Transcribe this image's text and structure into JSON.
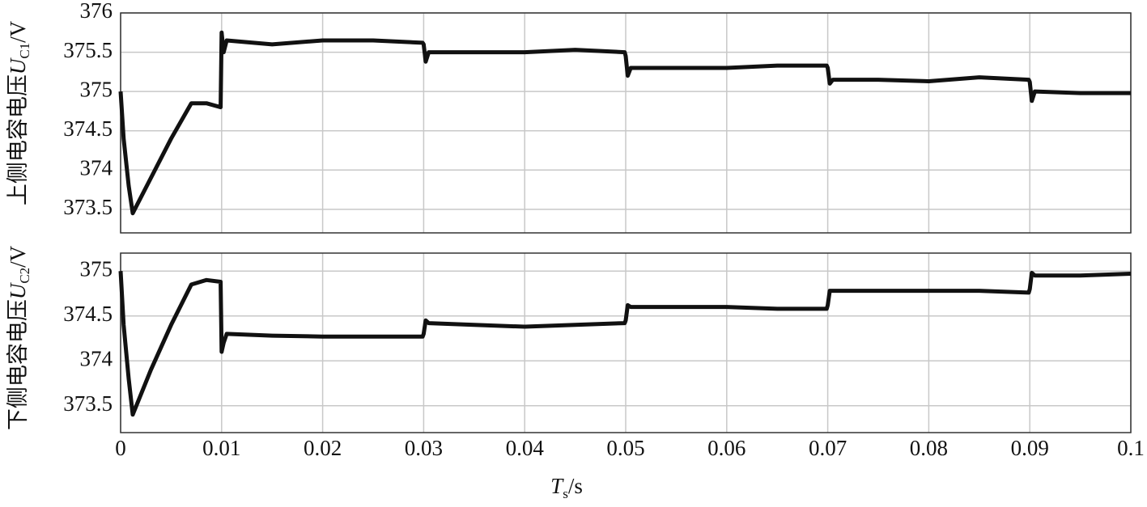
{
  "chart_data": [
    {
      "type": "line",
      "ylabel": [
        "上侧电容电压",
        "U",
        "C1",
        "/V"
      ],
      "xlim": [
        0,
        0.1
      ],
      "xticks": [
        0,
        0.01,
        0.02,
        0.03,
        0.04,
        0.05,
        0.06,
        0.07,
        0.08,
        0.09,
        0.1
      ],
      "show_xtick_labels": false,
      "ylim": [
        373.2,
        376
      ],
      "yticks": [
        373.5,
        374,
        374.5,
        375,
        375.5,
        376
      ],
      "grid": true,
      "x": [
        0,
        0.0003,
        0.0008,
        0.0012,
        0.003,
        0.005,
        0.007,
        0.0085,
        0.0099,
        0.01,
        0.0102,
        0.0105,
        0.015,
        0.02,
        0.025,
        0.0299,
        0.03,
        0.0302,
        0.0305,
        0.035,
        0.04,
        0.045,
        0.0499,
        0.05,
        0.0502,
        0.0505,
        0.055,
        0.06,
        0.065,
        0.0699,
        0.07,
        0.0702,
        0.0705,
        0.075,
        0.08,
        0.085,
        0.0899,
        0.09,
        0.0902,
        0.0905,
        0.095,
        0.1
      ],
      "series": [
        {
          "color": "#111111",
          "values": [
            375,
            374.4,
            373.8,
            373.45,
            373.9,
            374.4,
            374.85,
            374.85,
            374.8,
            375.75,
            375.5,
            375.65,
            375.6,
            375.65,
            375.65,
            375.62,
            375.6,
            375.38,
            375.5,
            375.5,
            375.5,
            375.53,
            375.5,
            375.45,
            375.2,
            375.3,
            375.3,
            375.3,
            375.33,
            375.33,
            375.3,
            375.1,
            375.15,
            375.15,
            375.13,
            375.18,
            375.15,
            375.12,
            374.88,
            375.0,
            374.98,
            374.98
          ]
        }
      ]
    },
    {
      "type": "line",
      "ylabel": [
        "下侧电容电压",
        "U",
        "C2",
        "/V"
      ],
      "xlabel": [
        "T",
        "s",
        "/s"
      ],
      "xlim": [
        0,
        0.1
      ],
      "xticks": [
        0,
        0.01,
        0.02,
        0.03,
        0.04,
        0.05,
        0.06,
        0.07,
        0.08,
        0.09,
        0.1
      ],
      "show_xtick_labels": true,
      "ylim": [
        373.2,
        375.2
      ],
      "yticks": [
        373.5,
        374,
        374.5,
        375
      ],
      "grid": true,
      "x": [
        0,
        0.0003,
        0.0008,
        0.0012,
        0.003,
        0.005,
        0.007,
        0.0085,
        0.0099,
        0.01,
        0.0102,
        0.0105,
        0.015,
        0.02,
        0.025,
        0.0299,
        0.03,
        0.0302,
        0.0305,
        0.035,
        0.04,
        0.045,
        0.0499,
        0.05,
        0.0502,
        0.0505,
        0.055,
        0.06,
        0.065,
        0.0699,
        0.07,
        0.0702,
        0.0705,
        0.075,
        0.08,
        0.085,
        0.0899,
        0.09,
        0.0902,
        0.0905,
        0.095,
        0.1
      ],
      "series": [
        {
          "color": "#111111",
          "values": [
            375,
            374.4,
            373.8,
            373.4,
            373.9,
            374.4,
            374.85,
            374.9,
            374.88,
            374.1,
            374.2,
            374.3,
            374.28,
            374.27,
            374.27,
            374.27,
            374.3,
            374.45,
            374.42,
            374.4,
            374.38,
            374.4,
            374.42,
            374.45,
            374.62,
            374.6,
            374.6,
            374.6,
            374.58,
            374.58,
            374.62,
            374.78,
            374.78,
            374.78,
            374.78,
            374.78,
            374.76,
            374.8,
            374.98,
            374.95,
            374.95,
            374.97
          ]
        }
      ]
    }
  ]
}
